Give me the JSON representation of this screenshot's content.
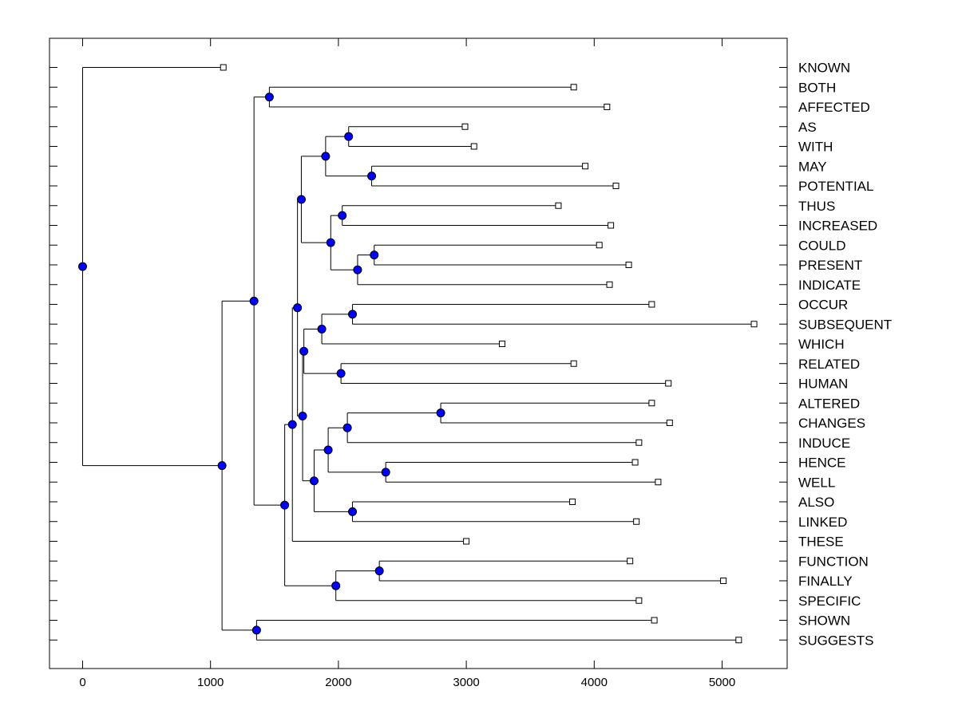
{
  "chart_data": {
    "type": "dendrogram",
    "xlabel": "",
    "ylabel": "",
    "xlim": [
      -250,
      5520
    ],
    "xticks": [
      0,
      1000,
      2000,
      3000,
      4000,
      5000
    ],
    "xtick_labels": [
      "0",
      "1000",
      "2000",
      "3000",
      "4000",
      "5000"
    ],
    "leaves": [
      {
        "label": "KNOWN",
        "height": 1100
      },
      {
        "label": "BOTH",
        "height": 3840
      },
      {
        "label": "AFFECTED",
        "height": 4100
      },
      {
        "label": "AS",
        "height": 2990
      },
      {
        "label": "WITH",
        "height": 3060
      },
      {
        "label": "MAY",
        "height": 3930
      },
      {
        "label": "POTENTIAL",
        "height": 4170
      },
      {
        "label": "THUS",
        "height": 3720
      },
      {
        "label": "INCREASED",
        "height": 4130
      },
      {
        "label": "COULD",
        "height": 4040
      },
      {
        "label": "PRESENT",
        "height": 4270
      },
      {
        "label": "INDICATE",
        "height": 4120
      },
      {
        "label": "OCCUR",
        "height": 4450
      },
      {
        "label": "SUBSEQUENT",
        "height": 5250
      },
      {
        "label": "WHICH",
        "height": 3280
      },
      {
        "label": "RELATED",
        "height": 3840
      },
      {
        "label": "HUMAN",
        "height": 4580
      },
      {
        "label": "ALTERED",
        "height": 4450
      },
      {
        "label": "CHANGES",
        "height": 4590
      },
      {
        "label": "INDUCE",
        "height": 4350
      },
      {
        "label": "HENCE",
        "height": 4320
      },
      {
        "label": "WELL",
        "height": 4500
      },
      {
        "label": "ALSO",
        "height": 3830
      },
      {
        "label": "LINKED",
        "height": 4330
      },
      {
        "label": "THESE",
        "height": 3000
      },
      {
        "label": "FUNCTION",
        "height": 4280
      },
      {
        "label": "FINALLY",
        "height": 5010
      },
      {
        "label": "SPECIFIC",
        "height": 4350
      },
      {
        "label": "SHOWN",
        "height": 4470
      },
      {
        "label": "SUGGESTS",
        "height": 5130
      }
    ],
    "merges": [
      {
        "id": "n1",
        "children": [
          "BOTH",
          "AFFECTED"
        ],
        "height": 1460
      },
      {
        "id": "n2",
        "children": [
          "AS",
          "WITH"
        ],
        "height": 2080
      },
      {
        "id": "n3",
        "children": [
          "MAY",
          "POTENTIAL"
        ],
        "height": 2260
      },
      {
        "id": "n4",
        "children": [
          "n2",
          "n3"
        ],
        "height": 1900
      },
      {
        "id": "n5",
        "children": [
          "THUS",
          "INCREASED"
        ],
        "height": 2030
      },
      {
        "id": "n6",
        "children": [
          "COULD",
          "PRESENT"
        ],
        "height": 2280
      },
      {
        "id": "n7",
        "children": [
          "n6",
          "INDICATE"
        ],
        "height": 2150
      },
      {
        "id": "n8",
        "children": [
          "n5",
          "n7"
        ],
        "height": 1940
      },
      {
        "id": "n9",
        "children": [
          "n4",
          "n8"
        ],
        "height": 1710
      },
      {
        "id": "n10",
        "children": [
          "OCCUR",
          "SUBSEQUENT"
        ],
        "height": 2110
      },
      {
        "id": "n11",
        "children": [
          "n10",
          "WHICH"
        ],
        "height": 1870
      },
      {
        "id": "n12",
        "children": [
          "RELATED",
          "HUMAN"
        ],
        "height": 2020
      },
      {
        "id": "n13",
        "children": [
          "n11",
          "n12"
        ],
        "height": 1730
      },
      {
        "id": "n14",
        "children": [
          "ALTERED",
          "CHANGES"
        ],
        "height": 2800
      },
      {
        "id": "n15",
        "children": [
          "n14",
          "INDUCE"
        ],
        "height": 2070
      },
      {
        "id": "n16",
        "children": [
          "HENCE",
          "WELL"
        ],
        "height": 2370
      },
      {
        "id": "n17",
        "children": [
          "n15",
          "n16"
        ],
        "height": 1920
      },
      {
        "id": "n18",
        "children": [
          "ALSO",
          "LINKED"
        ],
        "height": 2110
      },
      {
        "id": "n19",
        "children": [
          "n17",
          "n18"
        ],
        "height": 1810
      },
      {
        "id": "n20",
        "children": [
          "n13",
          "n19"
        ],
        "height": 1720
      },
      {
        "id": "n21",
        "children": [
          "n9",
          "n20"
        ],
        "height": 1680
      },
      {
        "id": "n22",
        "children": [
          "n21",
          "THESE"
        ],
        "height": 1640
      },
      {
        "id": "n23",
        "children": [
          "FUNCTION",
          "FINALLY"
        ],
        "height": 2320
      },
      {
        "id": "n24",
        "children": [
          "n23",
          "SPECIFIC"
        ],
        "height": 1980
      },
      {
        "id": "n25",
        "children": [
          "n22",
          "n24"
        ],
        "height": 1580
      },
      {
        "id": "n26",
        "children": [
          "n1",
          "n25"
        ],
        "height": 1340
      },
      {
        "id": "n27",
        "children": [
          "SHOWN",
          "SUGGESTS"
        ],
        "height": 1360
      },
      {
        "id": "n28",
        "children": [
          "n26",
          "n27"
        ],
        "height": 1090
      },
      {
        "id": "n29",
        "children": [
          "KNOWN",
          "n28"
        ],
        "height": 0
      }
    ],
    "node_color": "#0000ff",
    "line_color": "#000000",
    "leaf_marker_fill": "#ffffff"
  }
}
